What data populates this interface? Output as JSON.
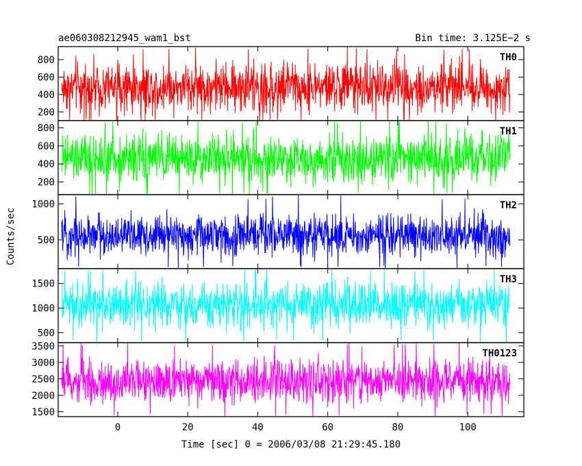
{
  "header": {
    "title": "ae060308212945_wam1_bst",
    "bin_time": "Bin time: 3.125E−2 s"
  },
  "axes": {
    "ylabel": "Counts/sec",
    "xlabel": "Time [sec] 0 = 2006/03/08 21:29:45.180"
  },
  "chart_data": {
    "type": "line",
    "x_range": [
      -16,
      112
    ],
    "xlim": [
      -17,
      116
    ],
    "x_ticks": [
      0,
      20,
      40,
      60,
      80,
      100
    ],
    "x_tick_labels": [
      "0",
      "20",
      "40",
      "60",
      "80",
      "100"
    ],
    "panels": [
      {
        "name": "TH0",
        "color": "#ff0000",
        "ylim": [
          100,
          950
        ],
        "y_ticks": [
          200,
          400,
          600,
          800
        ],
        "y_tick_labels": [
          "200",
          "400",
          "600",
          "800"
        ],
        "typical_range": [
          150,
          820
        ],
        "extremes": [
          70,
          950
        ]
      },
      {
        "name": "TH1",
        "color": "#00ff00",
        "ylim": [
          60,
          880
        ],
        "y_ticks": [
          200,
          400,
          600,
          800
        ],
        "y_tick_labels": [
          "200",
          "400",
          "600",
          "800"
        ],
        "typical_range": [
          150,
          770
        ],
        "extremes": [
          60,
          880
        ]
      },
      {
        "name": "TH2",
        "color": "#0000ff",
        "ylim": [
          100,
          1130
        ],
        "y_ticks": [
          500,
          1000
        ],
        "y_tick_labels": [
          "500",
          "1000"
        ],
        "typical_range": [
          230,
          900
        ],
        "extremes": [
          100,
          1130
        ]
      },
      {
        "name": "TH3",
        "color": "#00ffff",
        "ylim": [
          300,
          1800
        ],
        "y_ticks": [
          500,
          1000,
          1500
        ],
        "y_tick_labels": [
          "500",
          "1000",
          "1500"
        ],
        "typical_range": [
          520,
          1600
        ],
        "extremes": [
          300,
          1800
        ]
      },
      {
        "name": "TH0123",
        "color": "#ff00ff",
        "ylim": [
          1350,
          3600
        ],
        "y_ticks": [
          1500,
          2000,
          2500,
          3000,
          3500
        ],
        "y_tick_labels": [
          "1500",
          "2000",
          "2500",
          "3000",
          "3500"
        ],
        "typical_range": [
          1650,
          3200
        ],
        "extremes": [
          1350,
          3600
        ]
      }
    ]
  }
}
